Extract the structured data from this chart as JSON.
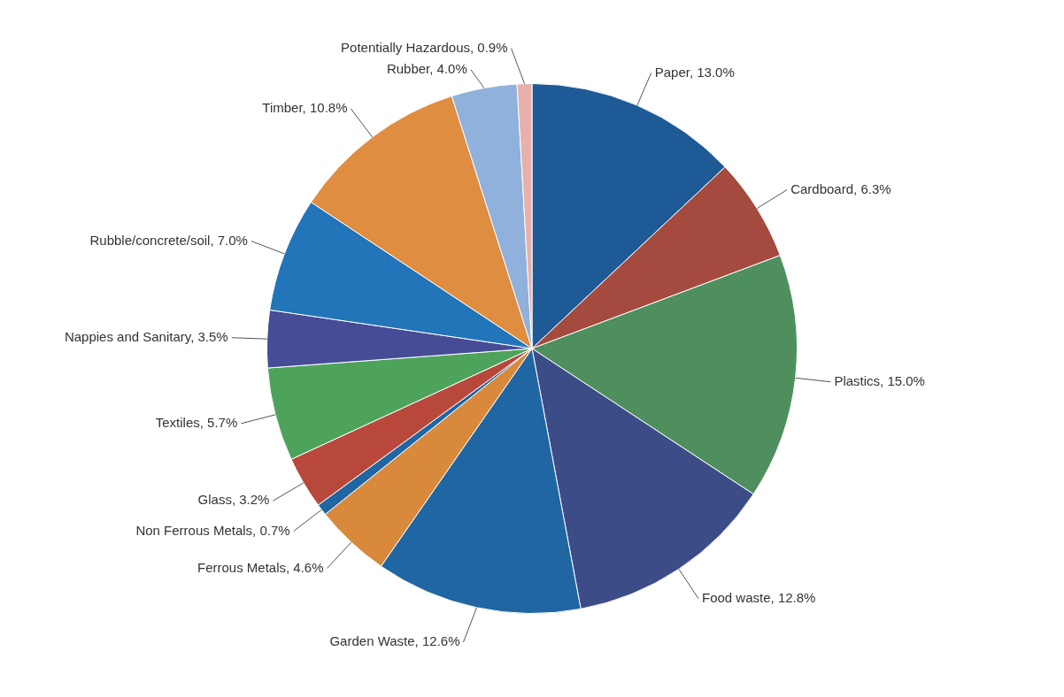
{
  "chart_data": {
    "type": "pie",
    "categories": [
      "Paper",
      "Cardboard",
      "Plastics",
      "Food waste",
      "Garden Waste",
      "Ferrous Metals",
      "Non Ferrous Metals",
      "Glass",
      "Textiles",
      "Nappies and Sanitary",
      "Rubble/concrete/soil",
      "Timber",
      "Rubber",
      "Potentially Hazardous"
    ],
    "values": [
      13.0,
      6.3,
      15.0,
      12.8,
      12.6,
      4.6,
      0.7,
      3.2,
      5.7,
      3.5,
      7.0,
      10.8,
      4.0,
      0.9
    ],
    "value_labels": [
      "13.0%",
      "6.3%",
      "15.0%",
      "12.8%",
      "12.6%",
      "4.6%",
      "0.7%",
      "3.2%",
      "5.7%",
      "3.5%",
      "7.0%",
      "10.8%",
      "4.0%",
      "0.9%"
    ],
    "colors": [
      "#1d5a96",
      "#a44a3f",
      "#4f8f5e",
      "#3c4c86",
      "#1f66a3",
      "#d8893b",
      "#1f66a3",
      "#b9483c",
      "#4ea35b",
      "#474c96",
      "#2175b8",
      "#df8d40",
      "#8fb1dc",
      "#e6b1ab"
    ]
  }
}
